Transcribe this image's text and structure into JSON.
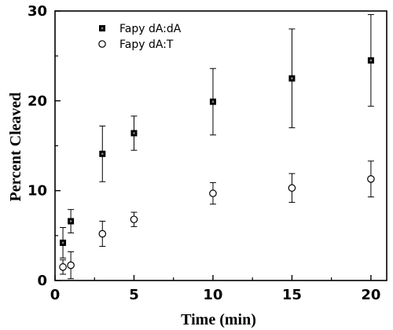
{
  "chart_data": {
    "type": "scatter",
    "title": "",
    "xlabel": "Time (min)",
    "ylabel": "Percent Cleaved",
    "xlim": [
      0,
      21
    ],
    "ylim": [
      0,
      30
    ],
    "xticks": [
      0,
      5,
      10,
      15,
      20
    ],
    "yticks": [
      0,
      10,
      20,
      30
    ],
    "xtick_labels": [
      "0",
      "5",
      "10",
      "15",
      "20"
    ],
    "ytick_labels": [
      "0",
      "10",
      "20",
      "30"
    ],
    "grid": false,
    "legend_position": "top-left",
    "series": [
      {
        "name": "Fapy dA:dA",
        "marker": "filled-square",
        "color": "#000000",
        "x": [
          0.5,
          1,
          3,
          5,
          10,
          15,
          20
        ],
        "y": [
          4.2,
          6.6,
          14.1,
          16.4,
          19.9,
          22.5,
          24.5
        ],
        "err": [
          1.7,
          1.3,
          3.1,
          1.9,
          3.7,
          5.5,
          5.1
        ]
      },
      {
        "name": "Fapy dA:T",
        "marker": "open-circle",
        "color": "#000000",
        "x": [
          0.5,
          1,
          3,
          5,
          10,
          15,
          20
        ],
        "y": [
          1.5,
          1.7,
          5.2,
          6.8,
          9.7,
          10.3,
          11.3
        ],
        "err": [
          0.8,
          1.5,
          1.4,
          0.8,
          1.2,
          1.6,
          2.0
        ]
      }
    ]
  }
}
